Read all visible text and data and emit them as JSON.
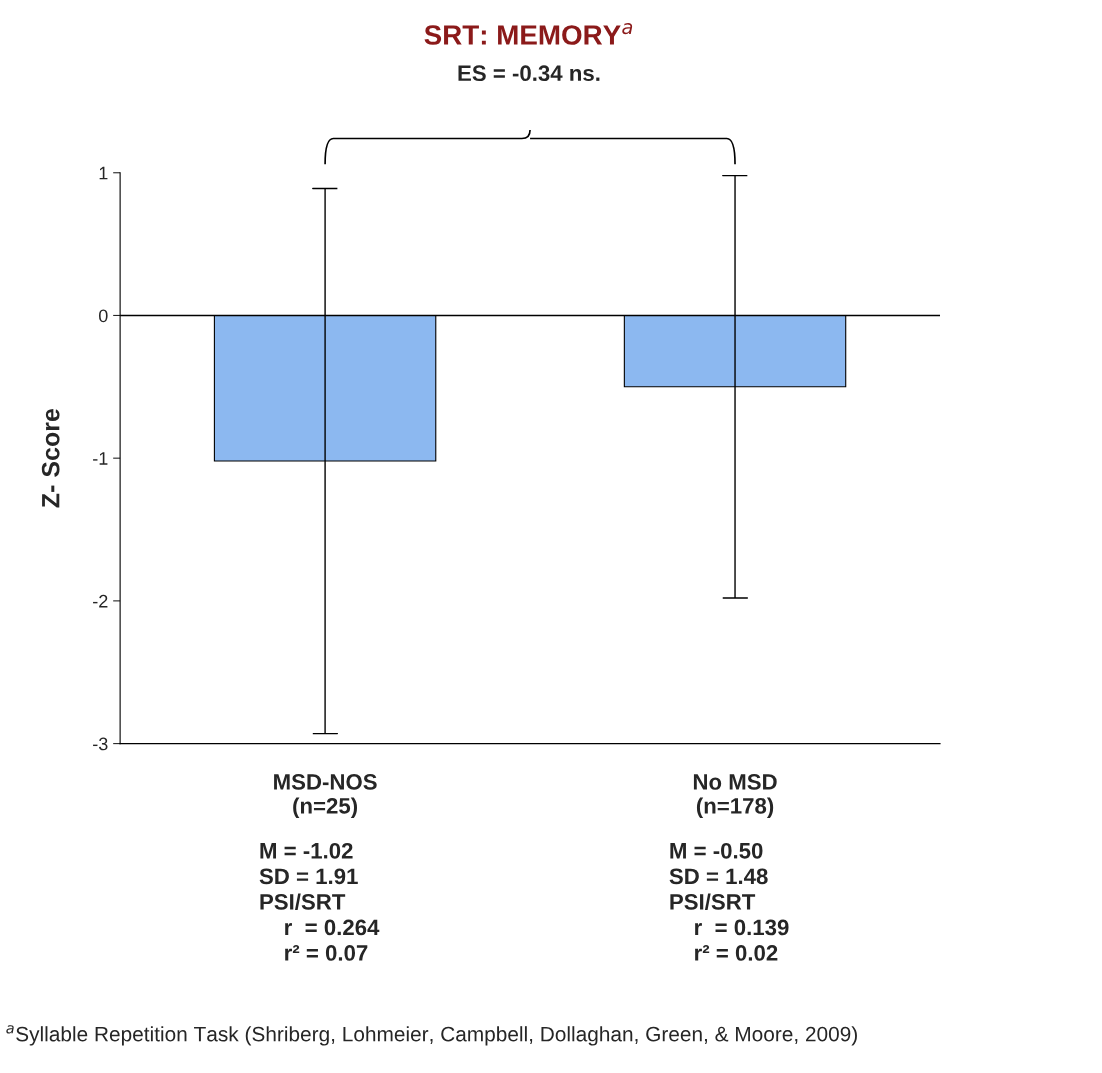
{
  "chart_data": {
    "type": "bar",
    "title": "SRT: MEMORY$^{a}$",
    "subtitle": "ES = -0.34 ns.",
    "ylabel": "Z- Score",
    "categories": [
      "MSD-NOS\n(n=25)",
      "No MSD\n(n=178)"
    ],
    "values": [
      -1.02,
      -0.5
    ],
    "errors": [
      1.91,
      1.48
    ],
    "color": "#8cb8f0",
    "ylim": [
      -3,
      1
    ],
    "yticks": [
      -3,
      -2,
      -1,
      0,
      1
    ],
    "grid": false,
    "legend": false,
    "ref_lines": [
      {
        "axis": "y",
        "value": 0,
        "color": "#000000"
      }
    ],
    "annotations": [
      "M = -1.02\nSD = 1.91\nPSI/SRT\n    r  = 0.264\n    r² = 0.07",
      "M = -0.50\nSD = 1.48\nPSI/SRT\n    r  = 0.139\n    r² = 0.02",
      "$^{a}$Syllable Repetition Task (Shriberg, Lohmeier, Campbell, Dollaghan, Green, & Moore, 2009)"
    ]
  }
}
